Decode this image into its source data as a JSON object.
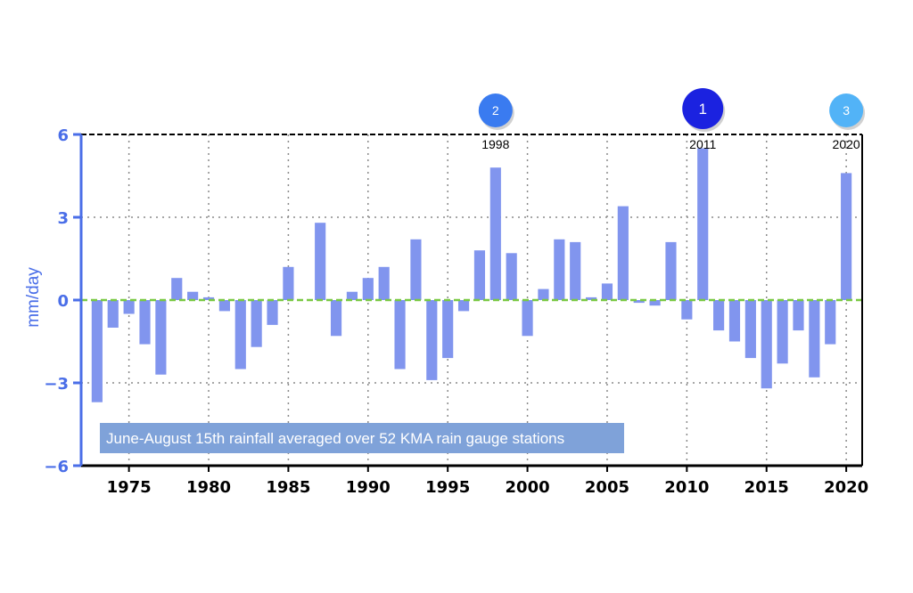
{
  "chart_data": {
    "type": "bar",
    "ylabel": "mm/day",
    "xlabel": "",
    "ylim": [
      -6,
      6
    ],
    "yticks": [
      6,
      3,
      0,
      -3,
      -6
    ],
    "xlim": [
      1972,
      2021
    ],
    "xticks": [
      1975,
      1980,
      1985,
      1990,
      1995,
      2000,
      2005,
      2010,
      2015,
      2020
    ],
    "grid": true,
    "x": [
      1973,
      1974,
      1975,
      1976,
      1977,
      1978,
      1979,
      1980,
      1981,
      1982,
      1983,
      1984,
      1985,
      1986,
      1987,
      1988,
      1989,
      1990,
      1991,
      1992,
      1993,
      1994,
      1995,
      1996,
      1997,
      1998,
      1999,
      2000,
      2001,
      2002,
      2003,
      2004,
      2005,
      2006,
      2007,
      2008,
      2009,
      2010,
      2011,
      2012,
      2013,
      2014,
      2015,
      2016,
      2017,
      2018,
      2019,
      2020
    ],
    "values": [
      -3.7,
      -1.0,
      -0.5,
      -1.6,
      -2.7,
      0.8,
      0.3,
      0.1,
      -0.4,
      -2.5,
      -1.7,
      -0.9,
      1.2,
      null,
      2.8,
      -1.3,
      0.3,
      0.8,
      1.2,
      -2.5,
      2.2,
      -2.9,
      -2.1,
      -0.4,
      1.8,
      4.8,
      1.7,
      -1.3,
      0.4,
      2.2,
      2.1,
      0.1,
      0.6,
      3.4,
      -0.1,
      -0.2,
      2.1,
      -0.7,
      5.5,
      -1.1,
      -1.5,
      -2.1,
      -3.2,
      -2.3,
      -1.1,
      -2.8,
      -1.6,
      4.6
    ],
    "bar_color": "#8195ee",
    "zero_line_color": "#7ac943",
    "axis_color": "#4a6ee8",
    "caption": "June-August 15th rainfall averaged over 52 KMA rain gauge stations",
    "caption_bg": "#7fa2d9",
    "annotations": [
      {
        "label": "1998",
        "x": 1998
      },
      {
        "label": "2011",
        "x": 2011
      },
      {
        "label": "2020",
        "x": 2020
      }
    ],
    "badges": [
      {
        "label": "2",
        "x": 1998,
        "color": "#3a7bf0"
      },
      {
        "label": "1",
        "x": 2011,
        "color": "#1b22e0"
      },
      {
        "label": "3",
        "x": 2020,
        "color": "#52b3f7"
      }
    ]
  }
}
